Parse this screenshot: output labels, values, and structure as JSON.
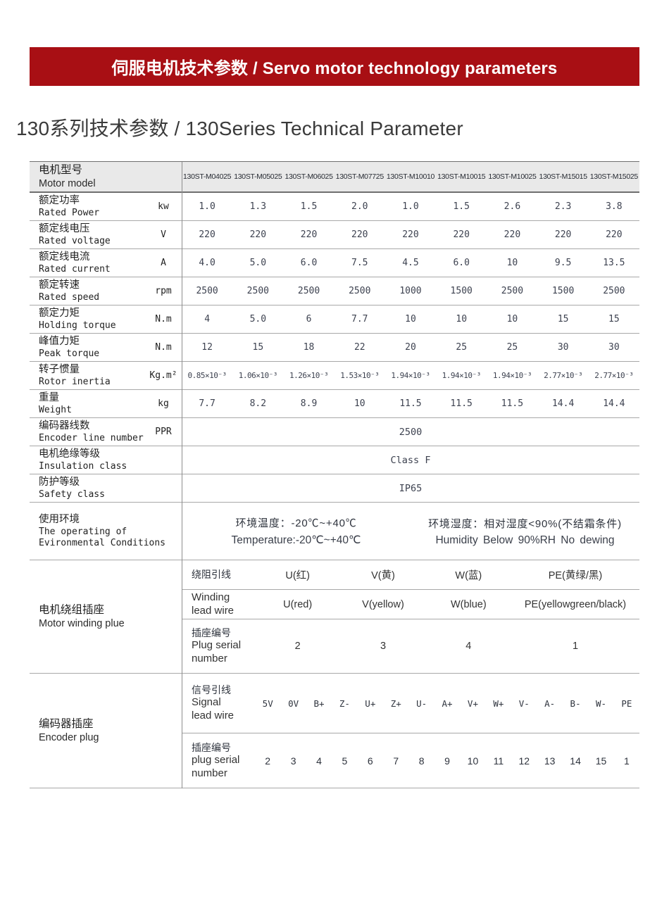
{
  "banner": {
    "title": "伺服电机技术参数 / Servo motor technology parameters",
    "bg_color": "#a80f14",
    "text_color": "#ffffff"
  },
  "section": {
    "title": "130系列技术参数 / 130Series Technical Parameter"
  },
  "table": {
    "header": {
      "label_zh": "电机型号",
      "label_en": "Motor model",
      "models": [
        "130ST-M04025",
        "130ST-M05025",
        "130ST-M06025",
        "130ST-M07725",
        "130ST-M10010",
        "130ST-M10015",
        "130ST-M10025",
        "130ST-M15015",
        "130ST-M15025"
      ]
    },
    "spec_rows": [
      {
        "zh": "额定功率",
        "en": "Rated Power",
        "unit": "kw",
        "values": [
          "1.0",
          "1.3",
          "1.5",
          "2.0",
          "1.0",
          "1.5",
          "2.6",
          "2.3",
          "3.8"
        ]
      },
      {
        "zh": "额定线电压",
        "en": "Rated voltage",
        "unit": "V",
        "values": [
          "220",
          "220",
          "220",
          "220",
          "220",
          "220",
          "220",
          "220",
          "220"
        ]
      },
      {
        "zh": "额定线电流",
        "en": "Rated current",
        "unit": "A",
        "values": [
          "4.0",
          "5.0",
          "6.0",
          "7.5",
          "4.5",
          "6.0",
          "10",
          "9.5",
          "13.5"
        ]
      },
      {
        "zh": "额定转速",
        "en": "Rated speed",
        "unit": "rpm",
        "values": [
          "2500",
          "2500",
          "2500",
          "2500",
          "1000",
          "1500",
          "2500",
          "1500",
          "2500"
        ]
      },
      {
        "zh": "额定力矩",
        "en": "Holding torque",
        "unit": "N.m",
        "values": [
          "4",
          "5.0",
          "6",
          "7.7",
          "10",
          "10",
          "10",
          "15",
          "15"
        ]
      },
      {
        "zh": "峰值力矩",
        "en": "Peak torque",
        "unit": "N.m",
        "values": [
          "12",
          "15",
          "18",
          "22",
          "20",
          "25",
          "25",
          "30",
          "30"
        ]
      },
      {
        "zh": "转子惯量",
        "en": "Rotor inertia",
        "unit": "Kg.m²",
        "values": [
          "0.85×10⁻³",
          "1.06×10⁻³",
          "1.26×10⁻³",
          "1.53×10⁻³",
          "1.94×10⁻³",
          "1.94×10⁻³",
          "1.94×10⁻³",
          "2.77×10⁻³",
          "2.77×10⁻³"
        ]
      },
      {
        "zh": "重量",
        "en": "Weight",
        "unit": "kg",
        "values": [
          "7.7",
          "8.2",
          "8.9",
          "10",
          "11.5",
          "11.5",
          "11.5",
          "14.4",
          "14.4"
        ]
      }
    ],
    "span_rows": [
      {
        "zh": "编码器线数",
        "en": "Encoder line number",
        "unit": "PPR",
        "value": "2500"
      },
      {
        "zh": "电机绝缘等级",
        "en": "Insulation class",
        "unit": "",
        "value": "Class F"
      },
      {
        "zh": "防护等级",
        "en": "Safety class",
        "unit": "",
        "value": "IP65"
      }
    ],
    "environment": {
      "zh": "使用环境",
      "en_line1": "The operating of",
      "en_line2": "Evironmental Conditions",
      "temp_zh": "环境温度：-20℃~+40℃",
      "temp_en": "Temperature:-20℃~+40℃",
      "humidity_zh": "环境湿度：相对湿度<90%(不结霜条件)",
      "humidity_en": "Humidity Below 90%RH No dewing"
    },
    "winding": {
      "zh": "电机绕组插座",
      "en": "Motor winding plue",
      "wire_zh": {
        "label": "绕阻引线",
        "values": [
          "U(红)",
          "V(黄)",
          "W(蓝)",
          "PE(黄绿/黑)"
        ]
      },
      "wire_en": {
        "label_line1": "Winding",
        "label_line2": "lead wire",
        "values": [
          "U(red)",
          "V(yellow)",
          "W(blue)",
          "PE(yellowgreen/black)"
        ]
      },
      "serial": {
        "label_zh": "插座编号",
        "label_en1": "Plug serial",
        "label_en2": "number",
        "values": [
          "2",
          "3",
          "4",
          "1"
        ]
      }
    },
    "encoder": {
      "zh": "编码器插座",
      "en": "Encoder plug",
      "signal": {
        "label_zh": "信号引线",
        "label_en1": "Signal",
        "label_en2": "lead wire",
        "values": [
          "5V",
          "0V",
          "B+",
          "Z-",
          "U+",
          "Z+",
          "U-",
          "A+",
          "V+",
          "W+",
          "V-",
          "A-",
          "B-",
          "W-",
          "PE"
        ]
      },
      "serial": {
        "label_zh": "插座编号",
        "label_en1": "plug serial",
        "label_en2": "number",
        "values": [
          "2",
          "3",
          "4",
          "5",
          "6",
          "7",
          "8",
          "9",
          "10",
          "11",
          "12",
          "13",
          "14",
          "15",
          "1"
        ]
      }
    }
  }
}
